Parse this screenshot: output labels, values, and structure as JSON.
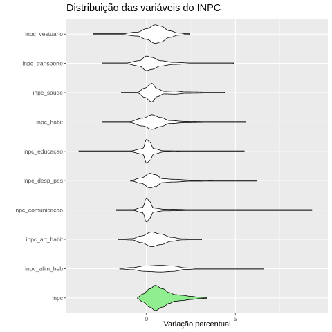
{
  "chart_data": {
    "type": "violin",
    "title": "Distribuição das variáveis do INPC",
    "xlabel": "Variação percentual",
    "ylabel": "",
    "xlim": [
      -4.5,
      10.2
    ],
    "x_ticks": [
      0,
      5
    ],
    "grid": true,
    "colors": {
      "panel": "#ebebeb",
      "grid_major": "#ffffff",
      "violin_fill": "#ffffff",
      "violin_fill_highlight": "#90ee90",
      "outline": "#000000"
    },
    "categories": [
      "inpc_vestuario",
      "inpc_transporte",
      "inpc_saude",
      "inpc_habit",
      "inpc_educacao",
      "inpc_desp_pes",
      "inpc_comunicacao",
      "inpc_art_habit",
      "inpc_alim_beb",
      "inpc"
    ],
    "series": [
      {
        "category": "inpc_vestuario",
        "highlight": false,
        "profile": [
          [
            -3.0,
            0.01
          ],
          [
            -1.5,
            0.015
          ],
          [
            -0.5,
            0.15
          ],
          [
            0.0,
            0.4
          ],
          [
            0.5,
            0.7
          ],
          [
            0.8,
            0.6
          ],
          [
            1.3,
            0.25
          ],
          [
            1.8,
            0.08
          ],
          [
            2.4,
            0.01
          ]
        ]
      },
      {
        "category": "inpc_transporte",
        "highlight": false,
        "profile": [
          [
            -2.5,
            0.01
          ],
          [
            -1.2,
            0.02
          ],
          [
            -0.4,
            0.2
          ],
          [
            0.0,
            0.55
          ],
          [
            0.3,
            0.45
          ],
          [
            0.8,
            0.2
          ],
          [
            1.5,
            0.08
          ],
          [
            2.5,
            0.03
          ],
          [
            4.9,
            0.01
          ]
        ]
      },
      {
        "category": "inpc_saude",
        "highlight": false,
        "profile": [
          [
            -1.4,
            0.01
          ],
          [
            -0.5,
            0.03
          ],
          [
            -0.1,
            0.35
          ],
          [
            0.3,
            0.7
          ],
          [
            0.6,
            0.3
          ],
          [
            1.0,
            0.1
          ],
          [
            1.6,
            0.12
          ],
          [
            2.2,
            0.05
          ],
          [
            4.4,
            0.01
          ]
        ]
      },
      {
        "category": "inpc_habit",
        "highlight": false,
        "profile": [
          [
            -2.5,
            0.01
          ],
          [
            -1.0,
            0.03
          ],
          [
            -0.2,
            0.3
          ],
          [
            0.3,
            0.55
          ],
          [
            0.8,
            0.35
          ],
          [
            1.3,
            0.12
          ],
          [
            2.2,
            0.05
          ],
          [
            3.5,
            0.03
          ],
          [
            5.6,
            0.01
          ]
        ]
      },
      {
        "category": "inpc_educacao",
        "highlight": false,
        "profile": [
          [
            -3.8,
            0.01
          ],
          [
            -1.0,
            0.015
          ],
          [
            -0.2,
            0.2
          ],
          [
            0.0,
            0.9
          ],
          [
            0.2,
            0.7
          ],
          [
            0.4,
            0.2
          ],
          [
            1.0,
            0.04
          ],
          [
            3.0,
            0.02
          ],
          [
            5.5,
            0.01
          ]
        ]
      },
      {
        "category": "inpc_desp_pes",
        "highlight": false,
        "profile": [
          [
            -0.9,
            0.01
          ],
          [
            -0.3,
            0.2
          ],
          [
            0.2,
            0.55
          ],
          [
            0.5,
            0.45
          ],
          [
            0.9,
            0.15
          ],
          [
            1.5,
            0.1
          ],
          [
            2.5,
            0.04
          ],
          [
            6.2,
            0.01
          ]
        ]
      },
      {
        "category": "inpc_comunicacao",
        "highlight": false,
        "profile": [
          [
            -1.7,
            0.01
          ],
          [
            -0.8,
            0.02
          ],
          [
            -0.2,
            0.2
          ],
          [
            0.0,
            0.95
          ],
          [
            0.15,
            0.7
          ],
          [
            0.4,
            0.15
          ],
          [
            1.0,
            0.06
          ],
          [
            3.0,
            0.02
          ],
          [
            9.3,
            0.01
          ]
        ]
      },
      {
        "category": "inpc_art_habit",
        "highlight": false,
        "profile": [
          [
            -1.6,
            0.01
          ],
          [
            -0.8,
            0.05
          ],
          [
            -0.3,
            0.25
          ],
          [
            0.3,
            0.55
          ],
          [
            0.8,
            0.4
          ],
          [
            1.4,
            0.15
          ],
          [
            2.0,
            0.04
          ],
          [
            3.1,
            0.01
          ]
        ]
      },
      {
        "category": "inpc_alim_beb",
        "highlight": false,
        "profile": [
          [
            -1.5,
            0.02
          ],
          [
            -0.8,
            0.08
          ],
          [
            -0.1,
            0.2
          ],
          [
            0.8,
            0.25
          ],
          [
            1.5,
            0.2
          ],
          [
            2.2,
            0.06
          ],
          [
            3.0,
            0.02
          ],
          [
            6.6,
            0.01
          ]
        ]
      },
      {
        "category": "inpc",
        "highlight": true,
        "profile": [
          [
            -0.5,
            0.05
          ],
          [
            -0.2,
            0.3
          ],
          [
            0.2,
            0.7
          ],
          [
            0.5,
            0.95
          ],
          [
            0.9,
            0.7
          ],
          [
            1.3,
            0.4
          ],
          [
            1.6,
            0.25
          ],
          [
            2.0,
            0.2
          ],
          [
            2.5,
            0.12
          ],
          [
            3.0,
            0.05
          ],
          [
            3.4,
            0.02
          ]
        ]
      }
    ]
  }
}
